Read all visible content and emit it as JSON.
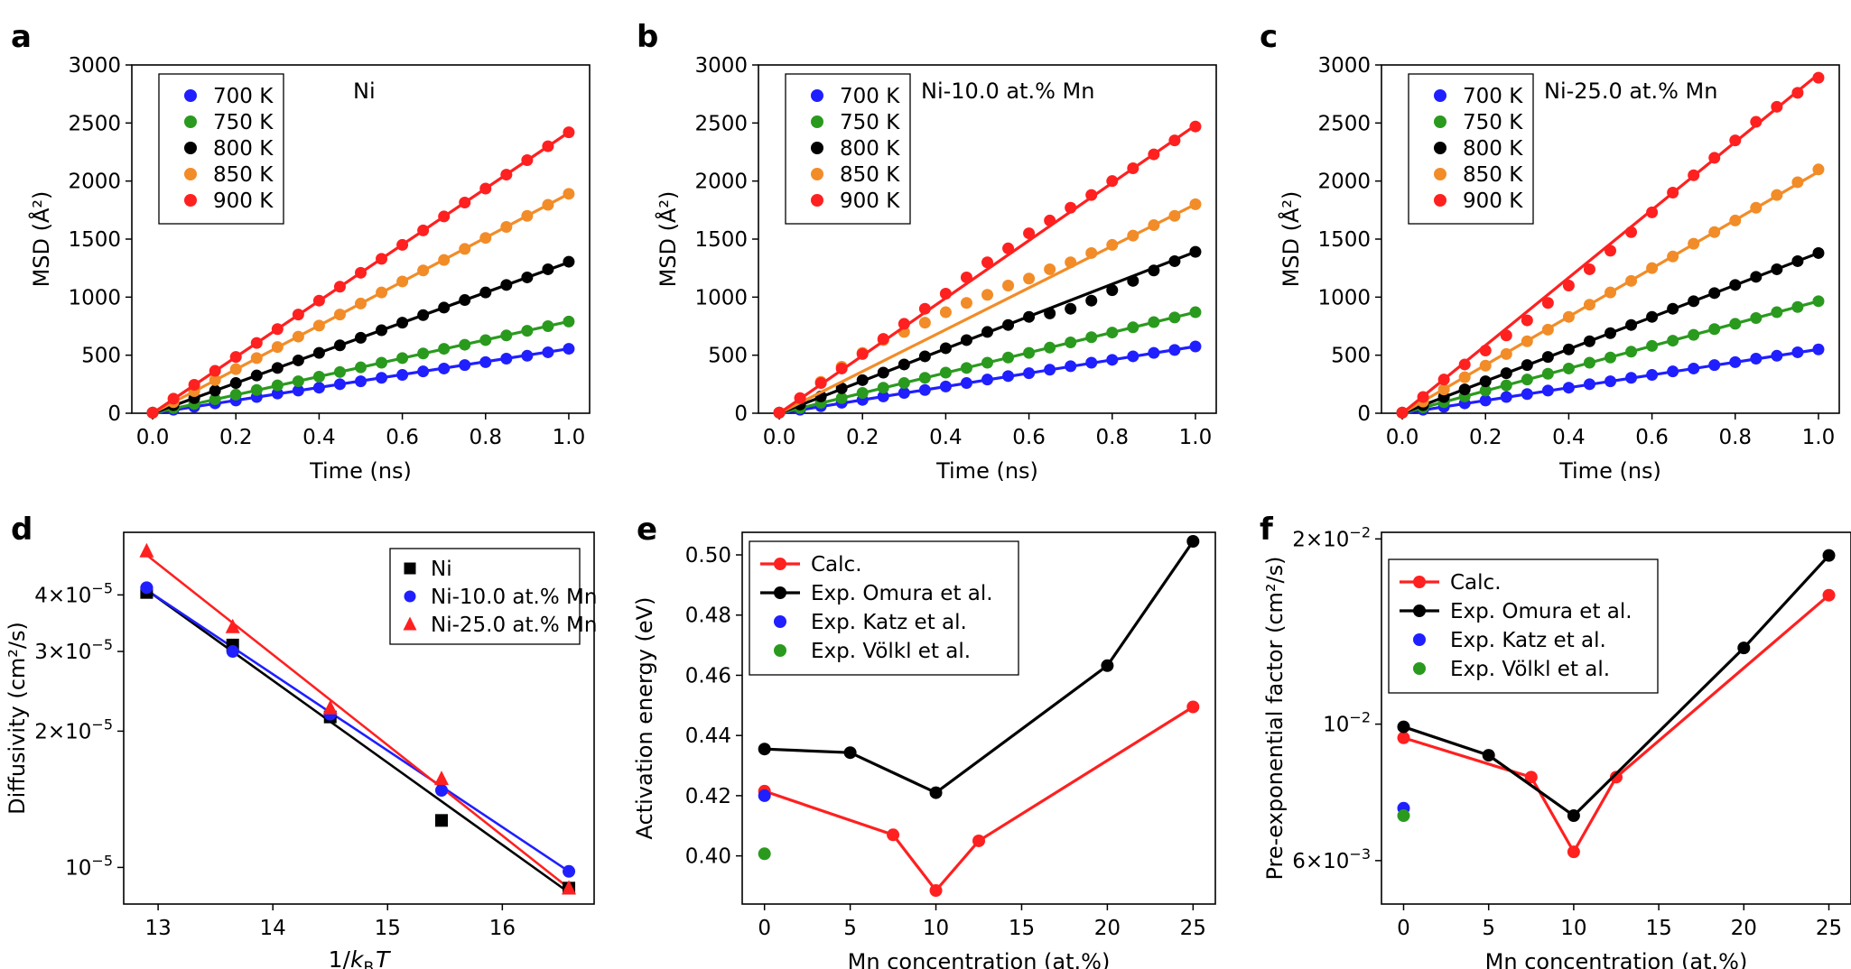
{
  "colors": {
    "700K": "#1f1fff",
    "750K": "#2a9a1e",
    "800K": "#000000",
    "850K": "#f28c28",
    "900K": "#ff2020",
    "calc": "#ff2020",
    "omura": "#000000",
    "katz": "#1f1fff",
    "volkl": "#2a9a1e",
    "ni": "#000000",
    "ni10": "#1f1fff",
    "ni25": "#ff2020"
  },
  "chart_data": [
    {
      "panel": "a",
      "type": "scatter",
      "annotation": "Ni",
      "xlabel": "Time (ns)",
      "ylabel": "MSD (Å²)",
      "xlim": [
        -0.05,
        1.05
      ],
      "ylim": [
        0,
        3000
      ],
      "xticks": [
        "0.0",
        "0.2",
        "0.4",
        "0.6",
        "0.8",
        "1.0"
      ],
      "yticks": [
        "0",
        "500",
        "1000",
        "1500",
        "2000",
        "2500",
        "3000"
      ],
      "x": [
        0,
        0.05,
        0.1,
        0.15,
        0.2,
        0.25,
        0.3,
        0.35,
        0.4,
        0.45,
        0.5,
        0.55,
        0.6,
        0.65,
        0.7,
        0.75,
        0.8,
        0.85,
        0.9,
        0.95,
        1.0
      ],
      "series": [
        {
          "name": "700 K",
          "color_key": "700K",
          "slope": 555,
          "values": [
            5,
            30,
            55,
            85,
            110,
            140,
            170,
            195,
            220,
            250,
            275,
            305,
            330,
            360,
            385,
            415,
            440,
            470,
            495,
            525,
            555
          ]
        },
        {
          "name": "750 K",
          "color_key": "750K",
          "slope": 790,
          "values": [
            5,
            45,
            80,
            120,
            160,
            200,
            240,
            275,
            315,
            355,
            395,
            435,
            475,
            515,
            555,
            590,
            630,
            670,
            710,
            750,
            790
          ]
        },
        {
          "name": "800 K",
          "color_key": "800K",
          "slope": 1300,
          "values": [
            5,
            70,
            130,
            195,
            260,
            325,
            390,
            455,
            520,
            585,
            650,
            715,
            780,
            845,
            910,
            975,
            1040,
            1105,
            1170,
            1240,
            1305
          ]
        },
        {
          "name": "850 K",
          "color_key": "850K",
          "slope": 1890,
          "values": [
            5,
            95,
            190,
            285,
            380,
            475,
            570,
            660,
            755,
            850,
            945,
            1040,
            1135,
            1230,
            1320,
            1415,
            1510,
            1605,
            1700,
            1795,
            1890
          ]
        },
        {
          "name": "900 K",
          "color_key": "900K",
          "slope": 2420,
          "values": [
            5,
            125,
            245,
            365,
            485,
            605,
            725,
            850,
            970,
            1090,
            1210,
            1330,
            1450,
            1575,
            1695,
            1815,
            1935,
            2055,
            2180,
            2300,
            2420
          ]
        }
      ]
    },
    {
      "panel": "b",
      "type": "scatter",
      "annotation": "Ni-10.0 at.% Mn",
      "xlabel": "Time (ns)",
      "ylabel": "MSD (Å²)",
      "xlim": [
        -0.05,
        1.05
      ],
      "ylim": [
        0,
        3000
      ],
      "xticks": [
        "0.0",
        "0.2",
        "0.4",
        "0.6",
        "0.8",
        "1.0"
      ],
      "yticks": [
        "0",
        "500",
        "1000",
        "1500",
        "2000",
        "2500",
        "3000"
      ],
      "x": [
        0,
        0.05,
        0.1,
        0.15,
        0.2,
        0.25,
        0.3,
        0.35,
        0.4,
        0.45,
        0.5,
        0.55,
        0.6,
        0.65,
        0.7,
        0.75,
        0.8,
        0.85,
        0.9,
        0.95,
        1.0
      ],
      "series": [
        {
          "name": "700 K",
          "color_key": "700K",
          "slope": 575,
          "values": [
            5,
            30,
            60,
            90,
            115,
            145,
            175,
            200,
            230,
            260,
            290,
            320,
            345,
            375,
            405,
            435,
            460,
            490,
            520,
            545,
            575
          ]
        },
        {
          "name": "750 K",
          "color_key": "750K",
          "slope": 870,
          "values": [
            5,
            45,
            90,
            130,
            175,
            220,
            260,
            305,
            350,
            390,
            435,
            480,
            520,
            565,
            610,
            655,
            695,
            740,
            785,
            825,
            870
          ]
        },
        {
          "name": "800 K",
          "color_key": "800K",
          "slope": 1390,
          "values": [
            5,
            75,
            145,
            215,
            285,
            350,
            420,
            490,
            560,
            630,
            700,
            760,
            830,
            860,
            900,
            970,
            1060,
            1140,
            1230,
            1310,
            1390
          ]
        },
        {
          "name": "850 K",
          "color_key": "850K",
          "slope": 1800,
          "values": [
            5,
            130,
            270,
            400,
            520,
            630,
            700,
            780,
            870,
            950,
            1020,
            1100,
            1160,
            1240,
            1300,
            1380,
            1450,
            1530,
            1620,
            1700,
            1800
          ]
        },
        {
          "name": "900 K",
          "color_key": "900K",
          "slope": 2480,
          "values": [
            5,
            130,
            260,
            385,
            510,
            640,
            770,
            900,
            1030,
            1170,
            1300,
            1420,
            1550,
            1660,
            1770,
            1880,
            2000,
            2110,
            2230,
            2350,
            2470
          ]
        }
      ]
    },
    {
      "panel": "c",
      "type": "scatter",
      "annotation": "Ni-25.0 at.% Mn",
      "xlabel": "Time (ns)",
      "ylabel": "MSD (Å²)",
      "xlim": [
        -0.05,
        1.05
      ],
      "ylim": [
        0,
        3000
      ],
      "xticks": [
        "0.0",
        "0.2",
        "0.4",
        "0.6",
        "0.8",
        "1.0"
      ],
      "yticks": [
        "0",
        "500",
        "1000",
        "1500",
        "2000",
        "2500",
        "3000"
      ],
      "x": [
        0,
        0.05,
        0.1,
        0.15,
        0.2,
        0.25,
        0.3,
        0.35,
        0.4,
        0.45,
        0.5,
        0.55,
        0.6,
        0.65,
        0.7,
        0.75,
        0.8,
        0.85,
        0.9,
        0.95,
        1.0
      ],
      "series": [
        {
          "name": "700 K",
          "color_key": "700K",
          "slope": 550,
          "values": [
            5,
            30,
            55,
            85,
            110,
            140,
            165,
            195,
            220,
            250,
            275,
            305,
            330,
            360,
            385,
            415,
            440,
            470,
            495,
            525,
            550
          ]
        },
        {
          "name": "750 K",
          "color_key": "750K",
          "slope": 965,
          "values": [
            5,
            50,
            95,
            145,
            195,
            240,
            290,
            340,
            385,
            435,
            480,
            530,
            580,
            625,
            675,
            725,
            770,
            820,
            870,
            915,
            965
          ]
        },
        {
          "name": "800 K",
          "color_key": "800K",
          "slope": 1380,
          "values": [
            5,
            70,
            140,
            205,
            275,
            345,
            415,
            485,
            550,
            620,
            690,
            760,
            830,
            900,
            965,
            1035,
            1105,
            1175,
            1240,
            1310,
            1380
          ]
        },
        {
          "name": "850 K",
          "color_key": "850K",
          "slope": 2080,
          "values": [
            5,
            100,
            205,
            310,
            410,
            510,
            620,
            720,
            830,
            935,
            1040,
            1140,
            1250,
            1350,
            1460,
            1560,
            1660,
            1770,
            1880,
            1990,
            2100
          ]
        },
        {
          "name": "900 K",
          "color_key": "900K",
          "slope": 2920,
          "values": [
            5,
            140,
            290,
            420,
            540,
            670,
            800,
            950,
            1100,
            1240,
            1400,
            1560,
            1730,
            1900,
            2050,
            2200,
            2350,
            2510,
            2640,
            2760,
            2890
          ]
        }
      ]
    },
    {
      "panel": "d",
      "type": "scatter",
      "yscale": "log",
      "xlabel_main": "1/",
      "xlabel_k": "k",
      "xlabel_sub": "B",
      "xlabel_T": "T",
      "ylabel": "Diffusivity (cm²/s)",
      "xlim": [
        12.7,
        16.8
      ],
      "ylim": [
        8.3e-06,
        5.5e-05
      ],
      "xticks": [
        13,
        14,
        15,
        16
      ],
      "xtick_labels": [
        "13",
        "14",
        "15",
        "16"
      ],
      "yticks": [
        1e-05,
        2e-05,
        3e-05,
        4e-05
      ],
      "ytick_labels": [
        {
          "base": "10",
          "exp": "−5",
          "mant": ""
        },
        {
          "base": "10",
          "exp": "−5",
          "mant": "2×"
        },
        {
          "base": "10",
          "exp": "−5",
          "mant": "3×"
        },
        {
          "base": "10",
          "exp": "−5",
          "mant": "4×"
        }
      ],
      "series": [
        {
          "name": "Ni",
          "marker": "square",
          "color_key": "ni",
          "x": [
            12.9,
            13.65,
            14.5,
            15.47,
            16.58
          ],
          "values": [
            4.05e-05,
            3.1e-05,
            2.15e-05,
            1.27e-05,
            9e-06
          ],
          "fit": [
            12.9,
            4.1e-05,
            16.58,
            8.8e-06
          ]
        },
        {
          "name": "Ni-10.0 at.% Mn",
          "marker": "circle",
          "color_key": "ni10",
          "x": [
            12.9,
            13.65,
            14.5,
            15.47,
            16.58
          ],
          "values": [
            4.15e-05,
            3e-05,
            2.18e-05,
            1.48e-05,
            9.8e-06
          ],
          "fit": [
            12.9,
            4.1e-05,
            16.58,
            9.8e-06
          ]
        },
        {
          "name": "Ni-25.0 at.% Mn",
          "marker": "triangle",
          "color_key": "ni25",
          "x": [
            12.9,
            13.65,
            14.5,
            15.47,
            16.58
          ],
          "values": [
            5e-05,
            3.4e-05,
            2.25e-05,
            1.57e-05,
            9e-06
          ],
          "fit": [
            12.9,
            4.9e-05,
            16.58,
            9e-06
          ]
        }
      ]
    },
    {
      "panel": "e",
      "type": "line",
      "xlabel": "Mn concentration (at.%)",
      "ylabel": "Activation energy (eV)",
      "xlim": [
        -1.3,
        26.3
      ],
      "ylim": [
        0.384,
        0.5075
      ],
      "xticks": [
        "0",
        "5",
        "10",
        "15",
        "20",
        "25"
      ],
      "yticks": [
        "0.40",
        "0.42",
        "0.44",
        "0.46",
        "0.48",
        "0.50"
      ],
      "series": [
        {
          "name": "Calc.",
          "color_key": "calc",
          "line": true,
          "x": [
            0,
            7.5,
            10,
            12.5,
            25
          ],
          "values": [
            0.4215,
            0.407,
            0.3885,
            0.405,
            0.4495
          ]
        },
        {
          "name": "Exp. Omura et al.",
          "color_key": "omura",
          "line": true,
          "x": [
            0,
            5,
            10,
            20,
            25
          ],
          "values": [
            0.4355,
            0.4343,
            0.421,
            0.4632,
            0.5045
          ]
        },
        {
          "name": "Exp. Katz et al.",
          "color_key": "katz",
          "line": false,
          "x": [
            0
          ],
          "values": [
            0.42
          ]
        },
        {
          "name": "Exp. Völkl et al.",
          "color_key": "volkl",
          "line": false,
          "x": [
            0
          ],
          "values": [
            0.4007
          ]
        }
      ]
    },
    {
      "panel": "f",
      "type": "line",
      "yscale": "log",
      "xlabel": "Mn concentration (at.%)",
      "ylabel": "Pre-exponential factor (cm²/s)",
      "xlim": [
        -1.3,
        26.3
      ],
      "ylim": [
        0.0051,
        0.0205
      ],
      "xticks": [
        "0",
        "5",
        "10",
        "15",
        "20",
        "25"
      ],
      "yticks": [
        0.006,
        0.01,
        0.02
      ],
      "ytick_labels": [
        {
          "mant": "6×",
          "base": "10",
          "exp": "−3"
        },
        {
          "mant": "",
          "base": "10",
          "exp": "−2"
        },
        {
          "mant": "2×",
          "base": "10",
          "exp": "−2"
        }
      ],
      "series": [
        {
          "name": "Calc.",
          "color_key": "calc",
          "line": true,
          "x": [
            0,
            7.5,
            10,
            12.5,
            25
          ],
          "values": [
            0.0095,
            0.0082,
            0.0062,
            0.0082,
            0.0162
          ]
        },
        {
          "name": "Exp. Omura et al.",
          "color_key": "omura",
          "line": true,
          "x": [
            0,
            5,
            10,
            20,
            25
          ],
          "values": [
            0.0099,
            0.0089,
            0.0071,
            0.0133,
            0.0188
          ]
        },
        {
          "name": "Exp. Katz et al.",
          "color_key": "katz",
          "line": false,
          "x": [
            0
          ],
          "values": [
            0.0073
          ]
        },
        {
          "name": "Exp. Völkl et al.",
          "color_key": "volkl",
          "line": false,
          "x": [
            0
          ],
          "values": [
            0.0071
          ]
        }
      ]
    }
  ]
}
